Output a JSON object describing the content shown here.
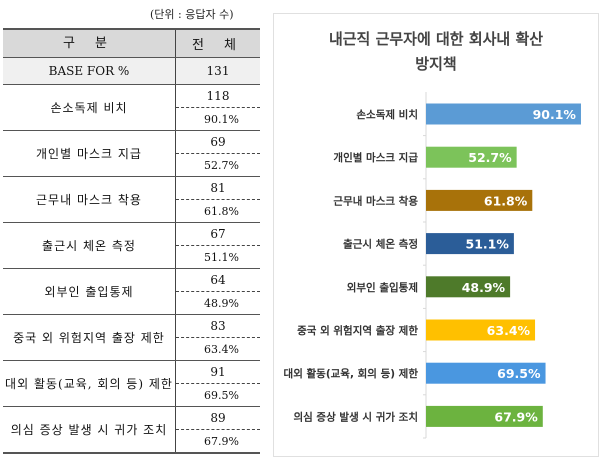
{
  "table": {
    "unit_note": "(단위 : 응답자 수)",
    "headers": [
      "구 분",
      "전 체"
    ],
    "base": {
      "label": "BASE FOR %",
      "value": "131"
    },
    "rows": [
      {
        "label": "손소독제 비치",
        "count": "118",
        "pct": "90.1%"
      },
      {
        "label": "개인별 마스크 지급",
        "count": "69",
        "pct": "52.7%"
      },
      {
        "label": "근무내 마스크 착용",
        "count": "81",
        "pct": "61.8%"
      },
      {
        "label": "출근시 체온 측정",
        "count": "67",
        "pct": "51.1%"
      },
      {
        "label": "외부인 출입통제",
        "count": "64",
        "pct": "48.9%"
      },
      {
        "label": "중국 외 위험지역 출장 제한",
        "count": "83",
        "pct": "63.4%"
      },
      {
        "label": "대외 활동(교육, 회의 등) 제한",
        "count": "91",
        "pct": "69.5%"
      },
      {
        "label": "의심 증상 발생 시 귀가 조치",
        "count": "89",
        "pct": "67.9%"
      }
    ]
  },
  "chart_data": {
    "type": "bar",
    "orientation": "horizontal",
    "title_line1": "내근직 근무자에 대한 회사내 확산",
    "title_line2": "방지책",
    "categories": [
      "손소독제 비치",
      "개인별 마스크 지급",
      "근무내 마스크 착용",
      "출근시 체온 측정",
      "외부인 출입통제",
      "중국 외 위험지역 출장 제한",
      "대외 활동(교육, 회의 등) 제한",
      "의심 증상 발생 시 귀가 조치"
    ],
    "values": [
      90.1,
      52.7,
      61.8,
      51.1,
      48.9,
      63.4,
      69.5,
      67.9
    ],
    "data_labels": [
      "90.1%",
      "52.7%",
      "61.8%",
      "51.1%",
      "48.9%",
      "63.4%",
      "69.5%",
      "67.9%"
    ],
    "colors": [
      "#5b9bd5",
      "#7cc35a",
      "#a8720a",
      "#2b5d98",
      "#4e7a2a",
      "#ffc000",
      "#4a97e0",
      "#6cb33f"
    ],
    "xlim": [
      0,
      100
    ],
    "grid": false
  }
}
